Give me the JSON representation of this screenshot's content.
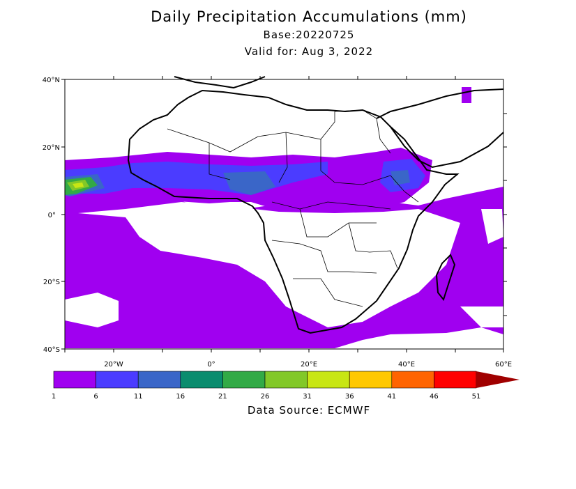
{
  "title": "Daily Precipitation Accumulations (mm)",
  "base": "Base:20220725",
  "valid": "Valid for: Aug 3, 2022",
  "lat_labels": [
    "40°N",
    "20°N",
    "0°",
    "20°S",
    "40°S"
  ],
  "lon_labels": [
    "20°W",
    "0°",
    "20°E",
    "40°E",
    "60°E"
  ],
  "legend": {
    "colors": [
      "#a000f0",
      "#4b3cff",
      "#3a66c8",
      "#0a8c6e",
      "#32aa46",
      "#82c828",
      "#c8e614",
      "#ffc800",
      "#ff6400",
      "#ff0000",
      "#a00000"
    ],
    "labels": [
      "1",
      "6",
      "11",
      "16",
      "21",
      "26",
      "31",
      "36",
      "41",
      "46",
      "51"
    ]
  },
  "source": "Data Source: ECMWF"
}
